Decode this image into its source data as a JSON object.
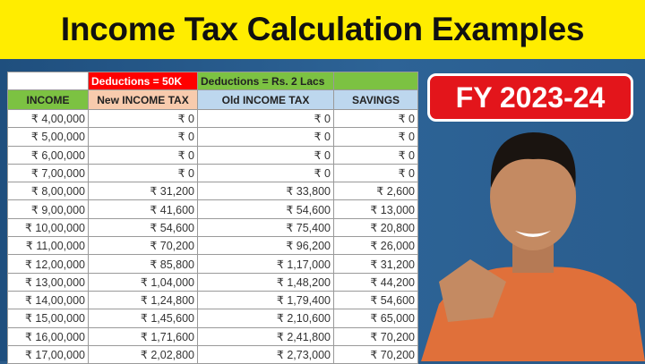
{
  "title": "Income Tax Calculation Examples",
  "badge": "FY 2023-24",
  "table": {
    "group_headers": [
      "",
      "Deductions = 50K",
      "Deductions = Rs. 2 Lacs",
      ""
    ],
    "columns": [
      "INCOME",
      "New INCOME TAX",
      "Old INCOME TAX",
      "SAVINGS"
    ],
    "rows": [
      [
        "₹ 4,00,000",
        "₹ 0",
        "₹ 0",
        "₹ 0"
      ],
      [
        "₹ 5,00,000",
        "₹ 0",
        "₹ 0",
        "₹ 0"
      ],
      [
        "₹ 6,00,000",
        "₹ 0",
        "₹ 0",
        "₹ 0"
      ],
      [
        "₹ 7,00,000",
        "₹ 0",
        "₹ 0",
        "₹ 0"
      ],
      [
        "₹ 8,00,000",
        "₹ 31,200",
        "₹ 33,800",
        "₹ 2,600"
      ],
      [
        "₹ 9,00,000",
        "₹ 41,600",
        "₹ 54,600",
        "₹ 13,000"
      ],
      [
        "₹ 10,00,000",
        "₹ 54,600",
        "₹ 75,400",
        "₹ 20,800"
      ],
      [
        "₹ 11,00,000",
        "₹ 70,200",
        "₹ 96,200",
        "₹ 26,000"
      ],
      [
        "₹ 12,00,000",
        "₹ 85,800",
        "₹ 1,17,000",
        "₹ 31,200"
      ],
      [
        "₹ 13,00,000",
        "₹ 1,04,000",
        "₹ 1,48,200",
        "₹ 44,200"
      ],
      [
        "₹ 14,00,000",
        "₹ 1,24,800",
        "₹ 1,79,400",
        "₹ 54,600"
      ],
      [
        "₹ 15,00,000",
        "₹ 1,45,600",
        "₹ 2,10,600",
        "₹ 65,000"
      ],
      [
        "₹ 16,00,000",
        "₹ 1,71,600",
        "₹ 2,41,800",
        "₹ 70,200"
      ],
      [
        "₹ 17,00,000",
        "₹ 2,02,800",
        "₹ 2,73,000",
        "₹ 70,200"
      ]
    ]
  },
  "colors": {
    "title_bg": "#ffed00",
    "badge_bg": "#e3151b",
    "background": "#2b5b8a",
    "green": "#7cc242",
    "red": "#ff0000",
    "peach": "#f8cbad",
    "lightblue": "#bdd7ee"
  }
}
